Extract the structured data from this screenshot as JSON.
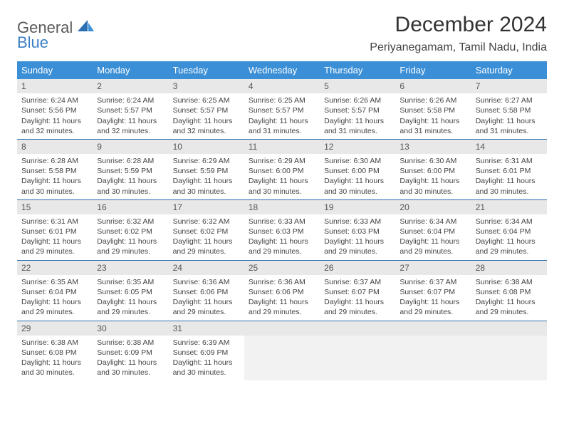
{
  "logo": {
    "text1": "General",
    "text2": "Blue"
  },
  "title": "December 2024",
  "location": "Periyanegamam, Tamil Nadu, India",
  "colors": {
    "header_bg": "#3b8fd6",
    "header_text": "#ffffff",
    "row_divider": "#2b6fb3",
    "daynum_bg": "#e8e8e8",
    "body_text": "#444444",
    "logo_blue": "#3b7fc4",
    "logo_gray": "#5a5a5a"
  },
  "weekdays": [
    "Sunday",
    "Monday",
    "Tuesday",
    "Wednesday",
    "Thursday",
    "Friday",
    "Saturday"
  ],
  "days": [
    {
      "n": "1",
      "sunrise": "6:24 AM",
      "sunset": "5:56 PM",
      "daylight": "11 hours and 32 minutes."
    },
    {
      "n": "2",
      "sunrise": "6:24 AM",
      "sunset": "5:57 PM",
      "daylight": "11 hours and 32 minutes."
    },
    {
      "n": "3",
      "sunrise": "6:25 AM",
      "sunset": "5:57 PM",
      "daylight": "11 hours and 32 minutes."
    },
    {
      "n": "4",
      "sunrise": "6:25 AM",
      "sunset": "5:57 PM",
      "daylight": "11 hours and 31 minutes."
    },
    {
      "n": "5",
      "sunrise": "6:26 AM",
      "sunset": "5:57 PM",
      "daylight": "11 hours and 31 minutes."
    },
    {
      "n": "6",
      "sunrise": "6:26 AM",
      "sunset": "5:58 PM",
      "daylight": "11 hours and 31 minutes."
    },
    {
      "n": "7",
      "sunrise": "6:27 AM",
      "sunset": "5:58 PM",
      "daylight": "11 hours and 31 minutes."
    },
    {
      "n": "8",
      "sunrise": "6:28 AM",
      "sunset": "5:58 PM",
      "daylight": "11 hours and 30 minutes."
    },
    {
      "n": "9",
      "sunrise": "6:28 AM",
      "sunset": "5:59 PM",
      "daylight": "11 hours and 30 minutes."
    },
    {
      "n": "10",
      "sunrise": "6:29 AM",
      "sunset": "5:59 PM",
      "daylight": "11 hours and 30 minutes."
    },
    {
      "n": "11",
      "sunrise": "6:29 AM",
      "sunset": "6:00 PM",
      "daylight": "11 hours and 30 minutes."
    },
    {
      "n": "12",
      "sunrise": "6:30 AM",
      "sunset": "6:00 PM",
      "daylight": "11 hours and 30 minutes."
    },
    {
      "n": "13",
      "sunrise": "6:30 AM",
      "sunset": "6:00 PM",
      "daylight": "11 hours and 30 minutes."
    },
    {
      "n": "14",
      "sunrise": "6:31 AM",
      "sunset": "6:01 PM",
      "daylight": "11 hours and 30 minutes."
    },
    {
      "n": "15",
      "sunrise": "6:31 AM",
      "sunset": "6:01 PM",
      "daylight": "11 hours and 29 minutes."
    },
    {
      "n": "16",
      "sunrise": "6:32 AM",
      "sunset": "6:02 PM",
      "daylight": "11 hours and 29 minutes."
    },
    {
      "n": "17",
      "sunrise": "6:32 AM",
      "sunset": "6:02 PM",
      "daylight": "11 hours and 29 minutes."
    },
    {
      "n": "18",
      "sunrise": "6:33 AM",
      "sunset": "6:03 PM",
      "daylight": "11 hours and 29 minutes."
    },
    {
      "n": "19",
      "sunrise": "6:33 AM",
      "sunset": "6:03 PM",
      "daylight": "11 hours and 29 minutes."
    },
    {
      "n": "20",
      "sunrise": "6:34 AM",
      "sunset": "6:04 PM",
      "daylight": "11 hours and 29 minutes."
    },
    {
      "n": "21",
      "sunrise": "6:34 AM",
      "sunset": "6:04 PM",
      "daylight": "11 hours and 29 minutes."
    },
    {
      "n": "22",
      "sunrise": "6:35 AM",
      "sunset": "6:04 PM",
      "daylight": "11 hours and 29 minutes."
    },
    {
      "n": "23",
      "sunrise": "6:35 AM",
      "sunset": "6:05 PM",
      "daylight": "11 hours and 29 minutes."
    },
    {
      "n": "24",
      "sunrise": "6:36 AM",
      "sunset": "6:06 PM",
      "daylight": "11 hours and 29 minutes."
    },
    {
      "n": "25",
      "sunrise": "6:36 AM",
      "sunset": "6:06 PM",
      "daylight": "11 hours and 29 minutes."
    },
    {
      "n": "26",
      "sunrise": "6:37 AM",
      "sunset": "6:07 PM",
      "daylight": "11 hours and 29 minutes."
    },
    {
      "n": "27",
      "sunrise": "6:37 AM",
      "sunset": "6:07 PM",
      "daylight": "11 hours and 29 minutes."
    },
    {
      "n": "28",
      "sunrise": "6:38 AM",
      "sunset": "6:08 PM",
      "daylight": "11 hours and 29 minutes."
    },
    {
      "n": "29",
      "sunrise": "6:38 AM",
      "sunset": "6:08 PM",
      "daylight": "11 hours and 30 minutes."
    },
    {
      "n": "30",
      "sunrise": "6:38 AM",
      "sunset": "6:09 PM",
      "daylight": "11 hours and 30 minutes."
    },
    {
      "n": "31",
      "sunrise": "6:39 AM",
      "sunset": "6:09 PM",
      "daylight": "11 hours and 30 minutes."
    }
  ],
  "labels": {
    "sunrise": "Sunrise: ",
    "sunset": "Sunset: ",
    "daylight": "Daylight: "
  }
}
